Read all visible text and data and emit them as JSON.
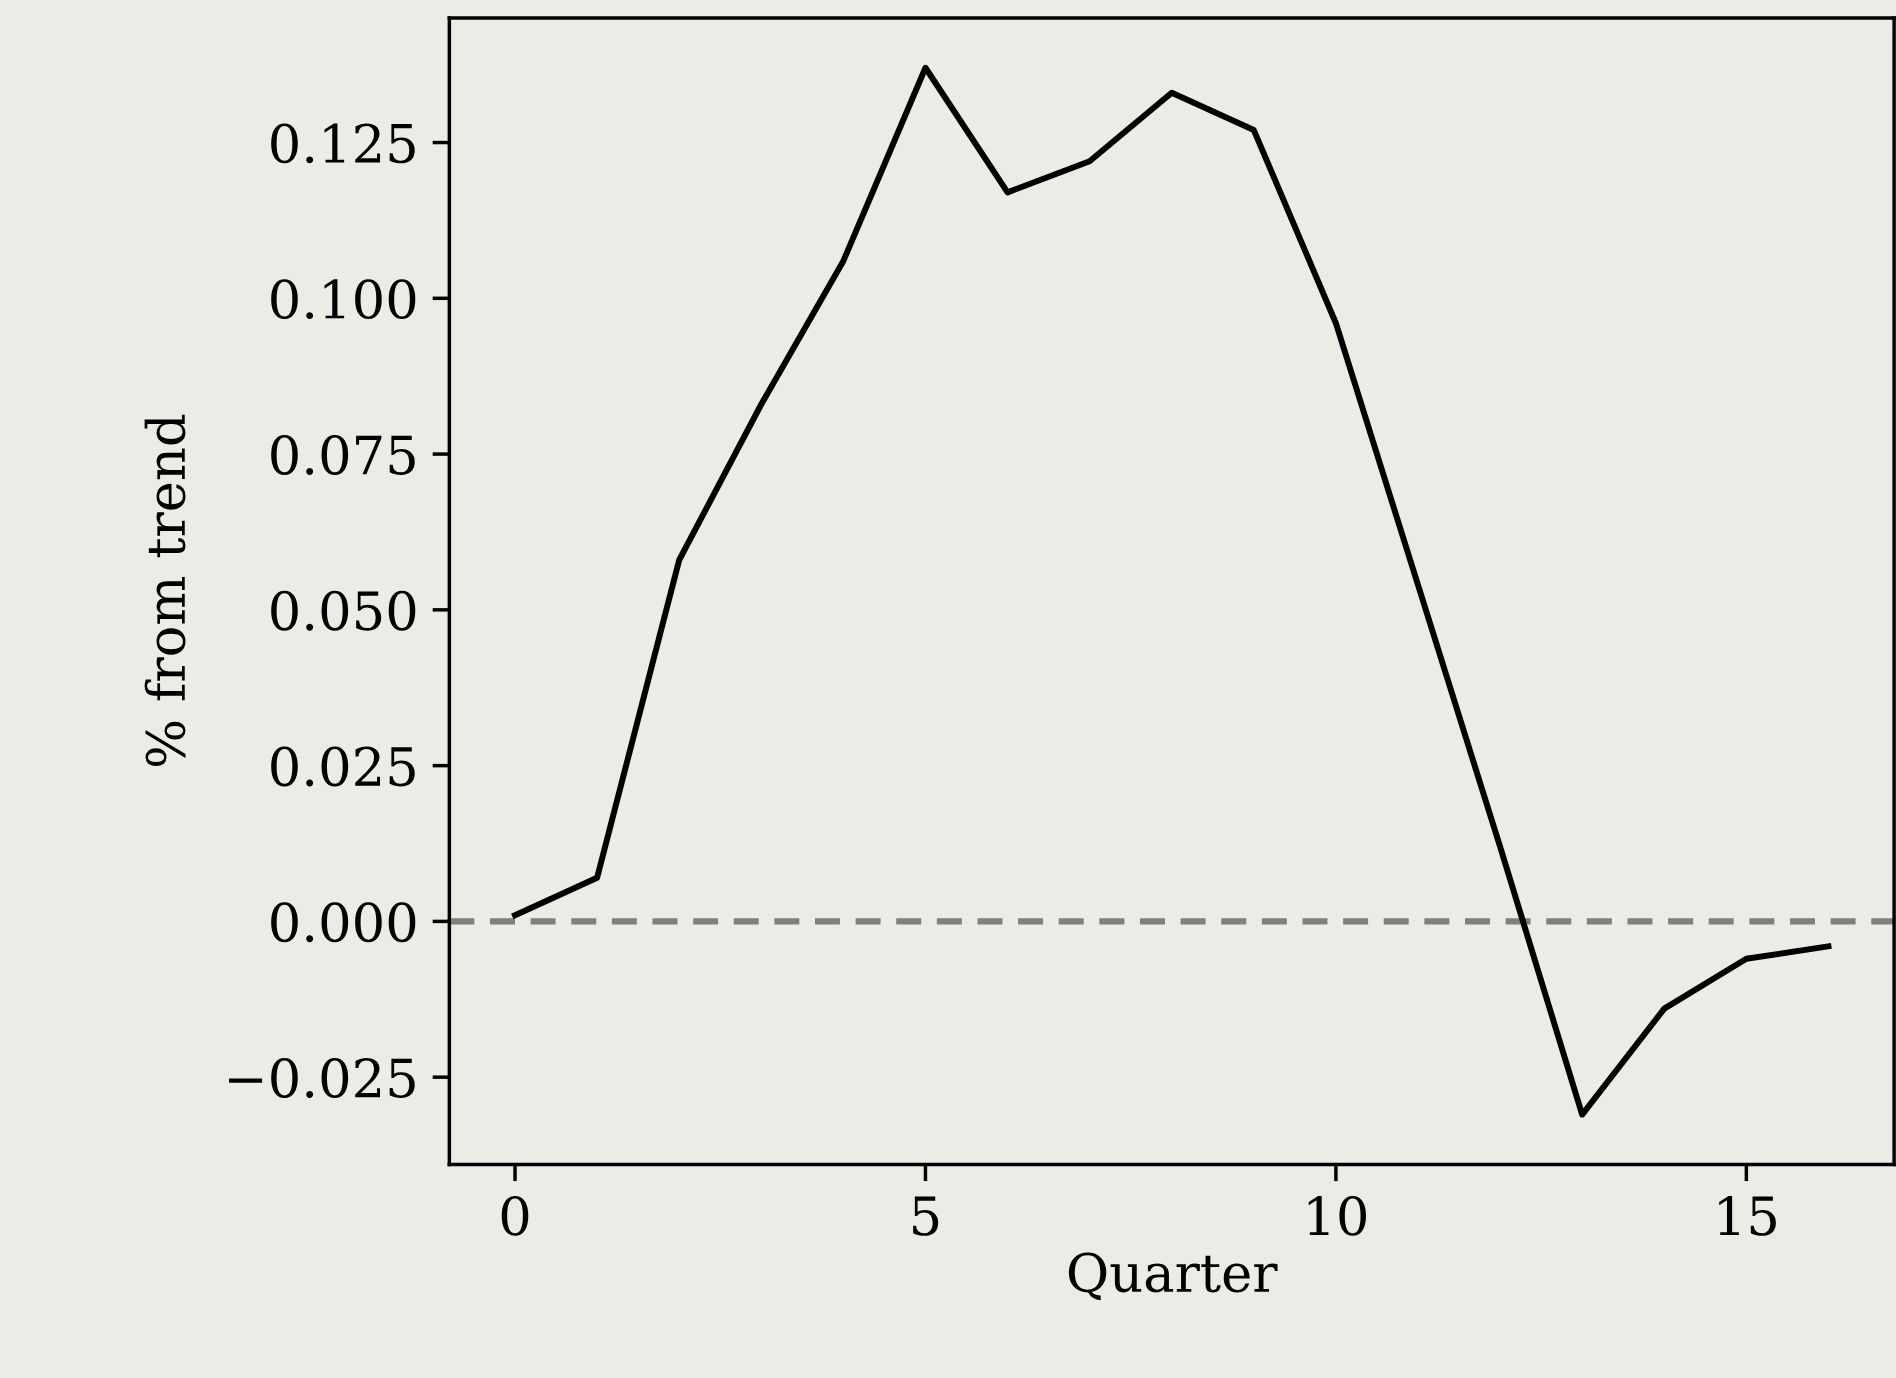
{
  "chart_data": {
    "type": "line",
    "xlabel": "Quarter",
    "ylabel": "% from trend",
    "x": [
      0,
      1,
      2,
      3,
      4,
      5,
      6,
      7,
      8,
      9,
      10,
      11,
      12,
      13,
      14,
      15,
      16
    ],
    "series": [
      {
        "color": "#000000",
        "values": [
          0.001,
          0.007,
          0.058,
          0.083,
          0.106,
          0.137,
          0.117,
          0.122,
          0.133,
          0.127,
          0.096,
          0.054,
          0.012,
          -0.031,
          -0.014,
          -0.006,
          -0.004
        ]
      }
    ],
    "xlim": [
      -0.8,
      16.8
    ],
    "xticks": [
      0,
      5,
      10,
      15
    ],
    "ylim": [
      -0.039,
      0.145
    ],
    "yticks": [
      {
        "value": -0.025,
        "label": "−0.025"
      },
      {
        "value": 0,
        "label": "0.000"
      },
      {
        "value": 0.025,
        "label": "0.025"
      },
      {
        "value": 0.05,
        "label": "0.050"
      },
      {
        "value": 0.075,
        "label": "0.075"
      },
      {
        "value": 0.1,
        "label": "0.100"
      },
      {
        "value": 0.125,
        "label": "0.125"
      }
    ],
    "ref_lines": [
      {
        "axis": "y",
        "value": 0,
        "color": "#808080",
        "line_style": "dashed"
      }
    ],
    "grid": false,
    "legend": false
  }
}
